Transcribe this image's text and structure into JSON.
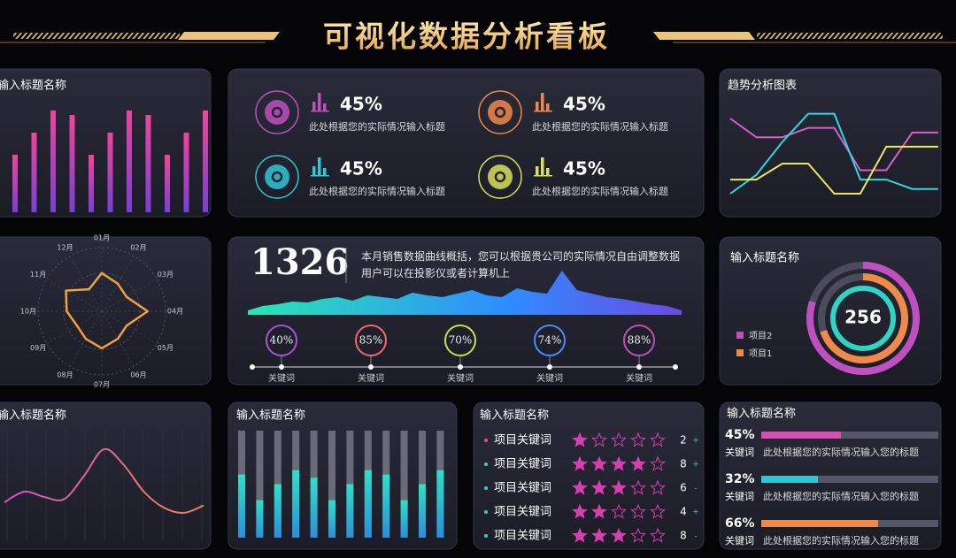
{
  "title": "可视化数据分析看板",
  "kpis": [
    {
      "value": "45%",
      "text": "此处根据您的实际情况输入标题",
      "color": "#c04fc0"
    },
    {
      "value": "45%",
      "text": "此处根据您的实际情况输入标题",
      "color": "#f0884a"
    },
    {
      "value": "45%",
      "text": "此处根据您的实际情况输入标题",
      "color": "#2fc7d6"
    },
    {
      "value": "45%",
      "text": "此处根据您的实际情况输入标题",
      "color": "#d8e05a"
    }
  ],
  "summary": {
    "number": "1326",
    "text": "本月销售数据曲线概括，您可以根据贵公司的实际情况自由调整数据用户可以在投影仪或者计算机上",
    "keywords": [
      {
        "percent": "40%",
        "label": "关键词",
        "color": "#b04fd8"
      },
      {
        "percent": "85%",
        "label": "关键词",
        "color": "#f06a6a"
      },
      {
        "percent": "70%",
        "label": "关键词",
        "color": "#c8e04a"
      },
      {
        "percent": "74%",
        "label": "关键词",
        "color": "#4a8bff"
      },
      {
        "percent": "88%",
        "label": "关键词",
        "color": "#c04fb0"
      }
    ]
  },
  "ratings": {
    "title": "输入标题名称",
    "items": [
      {
        "name": "项目关键词",
        "stars": 1,
        "count": 2,
        "trend": "+"
      },
      {
        "name": "项目关键词",
        "stars": 4,
        "count": 8,
        "trend": "+"
      },
      {
        "name": "项目关键词",
        "stars": 3,
        "count": 6,
        "trend": "-"
      },
      {
        "name": "项目关键词",
        "stars": 2,
        "count": 4,
        "trend": "+"
      },
      {
        "name": "项目关键词",
        "stars": 3,
        "count": 8,
        "trend": "-"
      }
    ]
  },
  "progress": {
    "title": "输入标题名称",
    "xlim": [
      0,
      100
    ],
    "items": [
      {
        "value": 45,
        "value_label": "45%",
        "keyword": "关键词",
        "text": "此处根据您的实际情况输入您的标题",
        "color": "#d64fb5"
      },
      {
        "value": 32,
        "value_label": "32%",
        "keyword": "关键词",
        "text": "此处根据您的实际情况输入您的标题",
        "color": "#2fc7d6"
      },
      {
        "value": 66,
        "value_label": "66%",
        "keyword": "关键词",
        "text": "此处根据您的实际情况输入您的标题",
        "color": "#f08a4a"
      }
    ]
  },
  "chart_data": [
    {
      "type": "bar",
      "title": "输入标题名称",
      "values": [
        65,
        90,
        115,
        110,
        65,
        90,
        115,
        110,
        65,
        90,
        115
      ],
      "ylim": [
        0,
        120
      ],
      "colors": [
        "#f0449a",
        "#7a3fd6"
      ]
    },
    {
      "type": "line",
      "title": "趋势分析图表",
      "ylim": [
        0,
        110
      ],
      "series": [
        {
          "color": "#d65fc8",
          "values": [
            95,
            75,
            75,
            85,
            85,
            40,
            40,
            80,
            80
          ]
        },
        {
          "color": "#2fd8e0",
          "values": [
            15,
            35,
            70,
            100,
            100,
            30,
            30,
            20,
            20
          ]
        },
        {
          "color": "#e8e860",
          "values": [
            30,
            30,
            47,
            47,
            15,
            15,
            65,
            65,
            65
          ]
        }
      ]
    },
    {
      "type": "radar",
      "categories": [
        "01月",
        "02月",
        "03月",
        "04月",
        "05月",
        "06月",
        "07月",
        "08月",
        "09月",
        "10月",
        "11月",
        "12月"
      ],
      "values": [
        60,
        50,
        45,
        72,
        45,
        50,
        58,
        50,
        45,
        55,
        65,
        40
      ],
      "ylim": [
        0,
        100
      ],
      "color": "#f0a040"
    },
    {
      "type": "area",
      "values": [
        5,
        10,
        12,
        15,
        14,
        18,
        20,
        16,
        22,
        20,
        18,
        25,
        22,
        20,
        24,
        28,
        22,
        20,
        30,
        26,
        24,
        50,
        28,
        24,
        20,
        18,
        15,
        12,
        10,
        5
      ],
      "ylim": [
        0,
        60
      ],
      "colors": [
        "#29e6b2",
        "#2f8cff",
        "#6b4be0"
      ]
    },
    {
      "type": "donut",
      "title": "输入标题名称",
      "center_label": "256",
      "ylim": [
        0,
        100
      ],
      "series": [
        {
          "name": "项目2",
          "color": "#c04fc0",
          "value": 80
        },
        {
          "name": "项目1",
          "color": "#f08a4a",
          "value": 70
        }
      ]
    },
    {
      "type": "line",
      "title": "输入标题名称",
      "values": [
        35,
        45,
        40,
        38,
        60,
        85,
        70,
        45,
        30,
        25,
        32
      ],
      "ylim": [
        0,
        100
      ],
      "colors": [
        "#d14fd0",
        "#f0884a"
      ]
    },
    {
      "type": "bar",
      "title": "输入标题名称",
      "values": [
        59,
        35,
        50,
        63,
        56,
        35,
        50,
        63,
        59,
        35,
        50,
        63
      ],
      "ylim": [
        0,
        100
      ],
      "colors": [
        "#2fe0c8",
        "#2a8fd8"
      ]
    }
  ]
}
